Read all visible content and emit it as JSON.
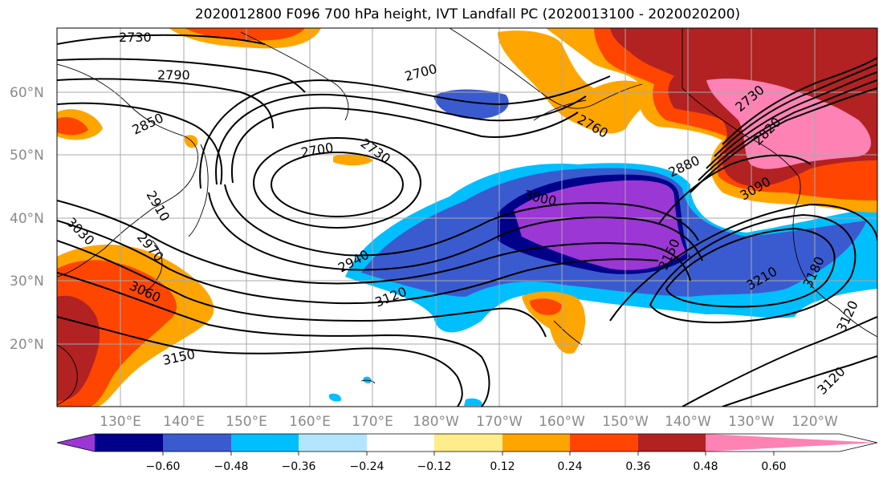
{
  "title": "2020012800 F096 700 hPa height, IVT Landfall PC (2020013100 - 2020020200)",
  "map": {
    "lon_labels": [
      "130°E",
      "140°E",
      "150°E",
      "160°E",
      "170°E",
      "180°W",
      "170°W",
      "160°W",
      "150°W",
      "140°W",
      "130°W",
      "120°W"
    ],
    "lat_labels": [
      "60°N",
      "50°N",
      "40°N",
      "30°N",
      "20°N"
    ],
    "contour_labels": [
      "2730",
      "2790",
      "2850",
      "2700",
      "2760",
      "2700",
      "2730",
      "2910",
      "3030",
      "2970",
      "3060",
      "3150",
      "2940",
      "3120",
      "3000",
      "2880",
      "3150",
      "2730",
      "2820",
      "3090",
      "3210",
      "3180",
      "3120",
      "3120"
    ]
  },
  "colorbar": {
    "ticks": [
      "−0.60",
      "−0.48",
      "−0.36",
      "−0.24",
      "−0.12",
      "0.12",
      "0.24",
      "0.36",
      "0.48",
      "0.60"
    ],
    "colors": [
      "#9b37d4",
      "#00008b",
      "#3a5bd0",
      "#00bfff",
      "#b3e5ff",
      "#ffffff",
      "#ffec8b",
      "#ffa500",
      "#ff4500",
      "#b22222",
      "#ff82b4"
    ]
  }
}
